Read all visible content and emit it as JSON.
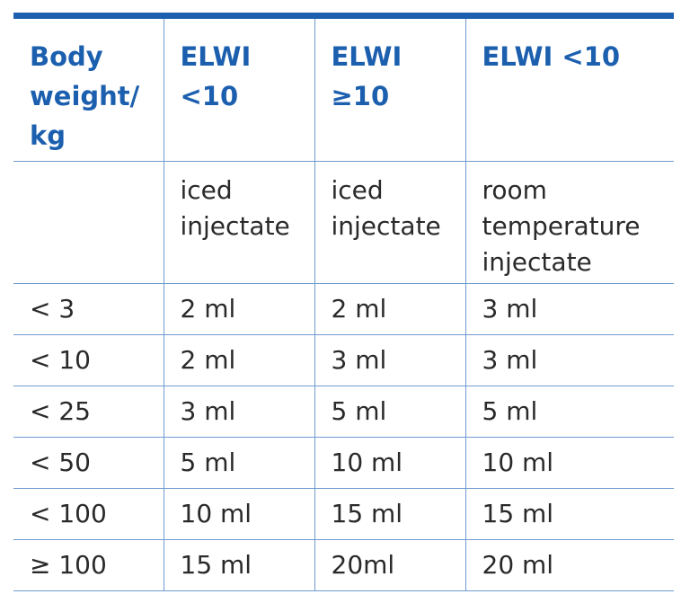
{
  "table": {
    "header": [
      [
        "Body",
        "weight/",
        "kg"
      ],
      [
        "ELWI",
        "<10"
      ],
      [
        "ELWI",
        "≥10"
      ],
      [
        "ELWI <10"
      ]
    ],
    "rows": [
      [
        null,
        [
          "iced",
          "injectate"
        ],
        [
          "iced",
          "injectate"
        ],
        [
          "room",
          "temperature",
          "injectate"
        ]
      ],
      [
        [
          "< 3"
        ],
        [
          "2 ml"
        ],
        [
          "2 ml"
        ],
        [
          "3 ml"
        ]
      ],
      [
        [
          "< 10"
        ],
        [
          "2 ml"
        ],
        [
          "3 ml"
        ],
        [
          "3 ml"
        ]
      ],
      [
        [
          "< 25"
        ],
        [
          "3 ml"
        ],
        [
          "5 ml"
        ],
        [
          "5 ml"
        ]
      ],
      [
        [
          "< 50"
        ],
        [
          "5 ml"
        ],
        [
          "10 ml"
        ],
        [
          "10 ml"
        ]
      ],
      [
        [
          "< 100"
        ],
        [
          "10 ml"
        ],
        [
          "15 ml"
        ],
        [
          "15 ml"
        ]
      ],
      [
        [
          "≥ 100"
        ],
        [
          "15 ml"
        ],
        [
          "20ml"
        ],
        [
          "20 ml"
        ]
      ]
    ]
  }
}
